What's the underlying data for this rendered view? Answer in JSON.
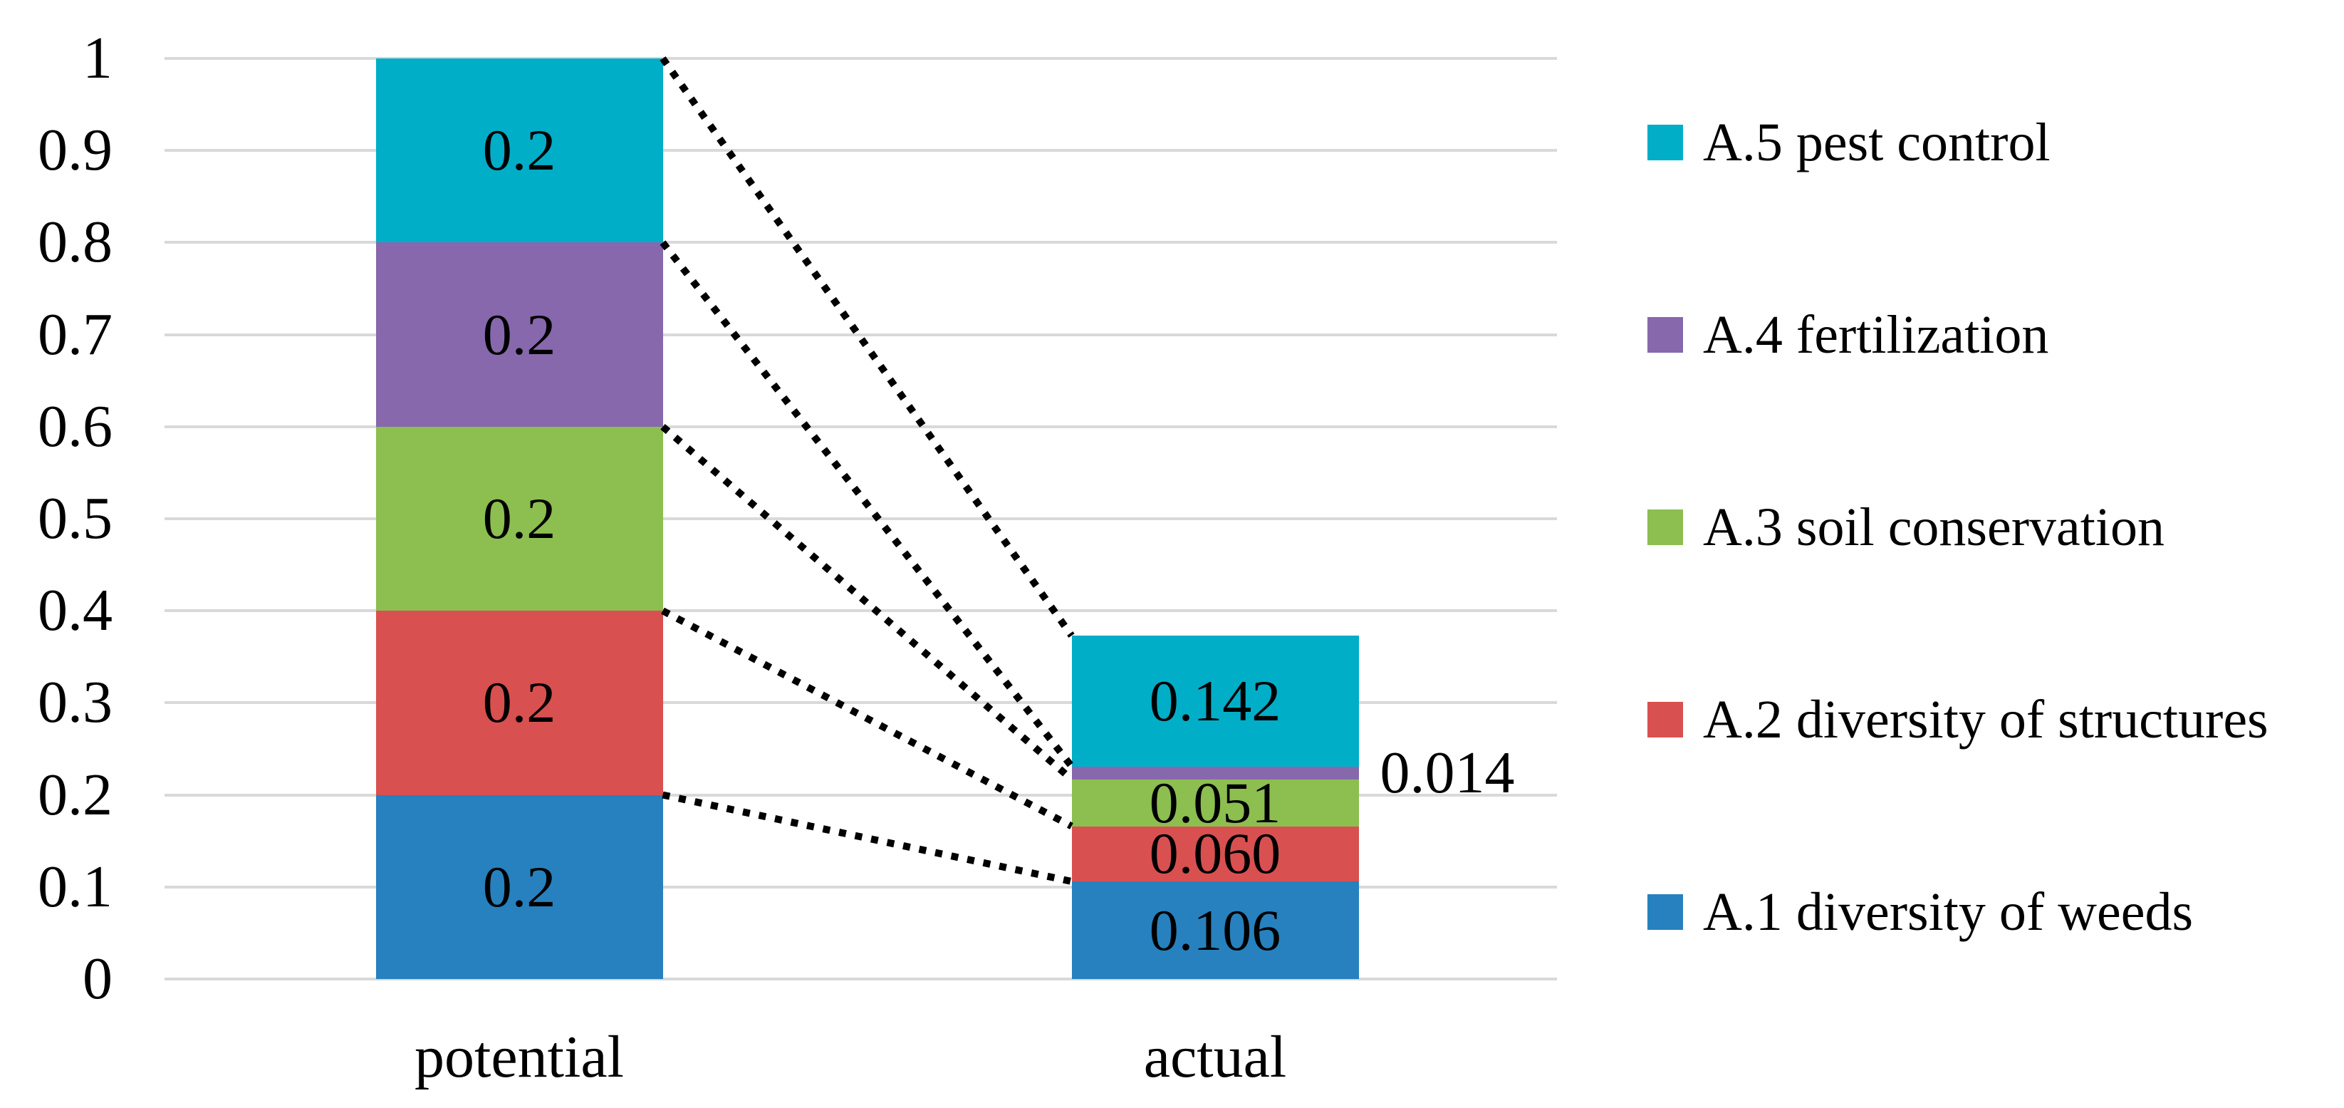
{
  "chart_data": {
    "type": "bar",
    "stacked": true,
    "title": "",
    "xlabel": "",
    "ylabel": "",
    "categories": [
      "potential",
      "actual"
    ],
    "series": [
      {
        "name": "A.1 diversity of weeds",
        "slug": "a1",
        "color": "#2781BE",
        "values": [
          0.2,
          0.106
        ],
        "labels": [
          "0.2",
          "0.106"
        ],
        "label_outside": [
          false,
          false
        ]
      },
      {
        "name": "A.2 diversity of structures",
        "slug": "a2",
        "color": "#D95050",
        "values": [
          0.2,
          0.06
        ],
        "labels": [
          "0.2",
          "0.060"
        ],
        "label_outside": [
          false,
          false
        ]
      },
      {
        "name": "A.3 soil conservation",
        "slug": "a3",
        "color": "#8CBE50",
        "values": [
          0.2,
          0.051
        ],
        "labels": [
          "0.2",
          "0.051"
        ],
        "label_outside": [
          false,
          false
        ]
      },
      {
        "name": "A.4 fertilization",
        "slug": "a4",
        "color": "#8768AC",
        "values": [
          0.2,
          0.014
        ],
        "labels": [
          "0.2",
          "0.014"
        ],
        "label_outside": [
          false,
          true
        ]
      },
      {
        "name": "A.5 pest control",
        "slug": "a5",
        "color": "#00AEC8",
        "values": [
          0.2,
          0.142
        ],
        "labels": [
          "0.2",
          "0.142"
        ],
        "label_outside": [
          false,
          false
        ]
      }
    ],
    "ylim": [
      0,
      1
    ],
    "ytick_labels": [
      "0",
      "0.1",
      "0.2",
      "0.3",
      "0.4",
      "0.5",
      "0.6",
      "0.7",
      "0.8",
      "0.9",
      "1"
    ],
    "grid": true,
    "gridline_color": "#D9D9D9",
    "connector_lines": {
      "style": "dotted",
      "color": "#000000"
    },
    "legend": {
      "position": "right",
      "items": [
        "A.5 pest control",
        "A.4 fertilization",
        "A.3 soil conservation",
        "A.2 diversity of structures",
        "A.1 diversity of weeds"
      ]
    }
  }
}
